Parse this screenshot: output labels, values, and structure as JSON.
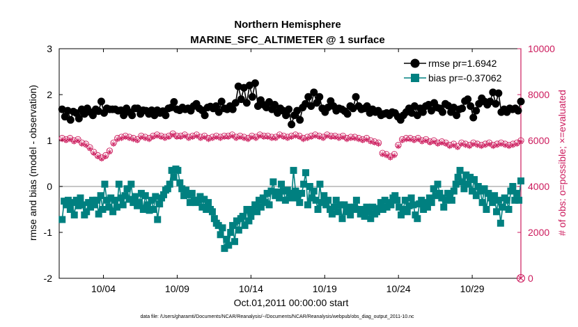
{
  "chart_data": {
    "type": "line",
    "title": "Northern Hemisphere",
    "subtitle": "MARINE_SFC_ALTIMETER @ 1 surface",
    "xlabel": "Oct.01,2011 00:00:00 start",
    "ylabel": "rmse and bias (model - observation)",
    "ylabel_right": "# of obs: o=possible; ×=evaluated",
    "footnote": "data file: /Users/gharamti/Documents/NCAR/Reanalysis/~/Documents/NCAR/Reanalysis/webpub/obs_diag_output_2011-10.nc",
    "xlim": [
      1,
      32.3
    ],
    "ylim": [
      -2,
      3
    ],
    "ylim_right": [
      0,
      10000
    ],
    "x_ticks": [
      4,
      9,
      14,
      19,
      24,
      29
    ],
    "x_tick_labels": [
      "10/04",
      "10/09",
      "10/14",
      "10/19",
      "10/24",
      "10/29"
    ],
    "y_ticks": [
      -2,
      -1,
      0,
      1,
      2,
      3
    ],
    "y_tick_labels": [
      "-2",
      "-1",
      "0",
      "1",
      "2",
      "3"
    ],
    "y_ticks_right": [
      0,
      2000,
      4000,
      6000,
      8000,
      10000
    ],
    "y_tick_labels_right": [
      "0",
      "2000",
      "4000",
      "6000",
      "8000",
      "10000"
    ],
    "legend_placement": "top-right",
    "zero_line": 0,
    "colors": {
      "rmse": "#000000",
      "bias": "#008080",
      "obs": "#cc1a5c",
      "zero": "#b3b3b3"
    },
    "series": [
      {
        "name": "rmse pr=1.6942",
        "marker": "circle",
        "axis": "left",
        "values": [
          1.68,
          1.52,
          1.65,
          1.45,
          1.63,
          1.6,
          1.48,
          1.68,
          1.58,
          1.7,
          1.62,
          1.55,
          1.68,
          1.64,
          1.85,
          1.6,
          1.7,
          1.68,
          1.68,
          1.68,
          1.65,
          1.66,
          1.55,
          1.7,
          1.62,
          1.55,
          1.7,
          1.7,
          1.58,
          1.66,
          1.65,
          1.58,
          1.66,
          1.55,
          1.66,
          1.6,
          1.64,
          1.55,
          1.7,
          1.72,
          1.84,
          1.68,
          1.66,
          1.72,
          1.68,
          1.7,
          1.65,
          1.75,
          1.8,
          1.7,
          1.66,
          1.55,
          1.72,
          1.74,
          1.7,
          1.75,
          1.62,
          1.85,
          1.7,
          1.68,
          1.75,
          1.68,
          1.82,
          2.18,
          1.9,
          2.15,
          1.82,
          2.2,
          1.95,
          2.25,
          1.75,
          1.88,
          1.78,
          1.72,
          1.84,
          1.68,
          1.78,
          1.6,
          1.7,
          1.65,
          1.55,
          1.68,
          1.35,
          1.55,
          1.65,
          1.45,
          1.72,
          1.8,
          1.95,
          1.75,
          2.05,
          1.82,
          1.95,
          1.7,
          1.62,
          1.72,
          1.86,
          1.75,
          1.65,
          1.7,
          1.68,
          1.64,
          1.58,
          1.75,
          1.7,
          1.95,
          1.75,
          1.68,
          1.7,
          1.75,
          1.6,
          1.68,
          1.62,
          1.65,
          1.55,
          1.58,
          1.6,
          1.55,
          1.62,
          1.6,
          1.52,
          1.45,
          1.55,
          1.62,
          1.7,
          1.6,
          1.75,
          1.55,
          1.7,
          1.62,
          1.75,
          1.78,
          1.65,
          1.82,
          1.72,
          1.7,
          1.62,
          1.8,
          1.76,
          1.62,
          1.72,
          1.55,
          1.68,
          1.7,
          1.86,
          1.9,
          1.75,
          1.5,
          1.65,
          1.8,
          1.92,
          1.85,
          1.78,
          1.85,
          2.05,
          1.8,
          2.03,
          1.62,
          1.68,
          1.62,
          1.7,
          1.68,
          1.7,
          1.65,
          1.85
        ]
      },
      {
        "name": "bias pr=-0.37062",
        "marker": "square",
        "axis": "left",
        "values": [
          -0.72,
          -0.32,
          -0.4,
          -0.3,
          -0.5,
          -0.35,
          -0.62,
          -0.3,
          -0.42,
          -0.25,
          -0.4,
          -0.62,
          -0.55,
          -0.35,
          -0.45,
          -0.3,
          -0.4,
          -0.3,
          -0.6,
          -0.2,
          -0.5,
          0.05,
          -0.3,
          -0.45,
          -0.25,
          -0.55,
          -0.3,
          -0.45,
          0.05,
          -0.25,
          -0.4,
          -0.2,
          -0.05,
          -0.28,
          0.05,
          -0.35,
          -0.22,
          -0.42,
          -0.35,
          -0.15,
          -0.5,
          -0.2,
          -0.4,
          -0.52,
          -0.3,
          -0.5,
          -0.22,
          -0.72,
          -0.38,
          -0.25,
          -0.18,
          -0.08,
          -0.05,
          0.05,
          0.35,
          0.2,
          0.38,
          0.35,
          0.08,
          -0.05,
          -0.2,
          -0.08,
          -0.18,
          -0.35,
          -0.15,
          -0.3,
          -0.35,
          -0.3,
          -0.22,
          -0.45,
          -0.28,
          -0.5,
          -0.35,
          -0.5,
          -0.55,
          -0.7,
          -0.8,
          -0.85,
          -1.05,
          -0.9,
          -1.35,
          -1.15,
          -1.28,
          -1.0,
          -0.85,
          -1.2,
          -0.75,
          -0.95,
          -0.7,
          -0.65,
          -0.85,
          -0.5,
          -0.75,
          -0.65,
          -0.5,
          -0.4,
          -0.55,
          -0.3,
          -0.45,
          -0.25,
          -0.35,
          -0.15,
          -0.4,
          -0.1,
          0.1,
          -0.2,
          -0.12,
          -0.25,
          0.05,
          -0.1,
          -0.3,
          -0.08,
          -0.15,
          -0.25,
          0.35,
          -0.1,
          -0.25,
          -0.35,
          -0.15,
          0.05,
          0.3,
          -0.4,
          0.0,
          -0.25,
          -0.1,
          -0.3,
          -0.5,
          0.05,
          -0.35,
          -0.2,
          -0.4,
          -0.3,
          -0.5,
          -0.6,
          -0.45,
          -0.3,
          -0.55,
          -0.4,
          -0.7,
          -0.4,
          -0.55,
          -0.45,
          -0.62,
          -0.5,
          -0.45,
          -0.3,
          -0.5,
          -0.6,
          -0.5,
          -0.65,
          -0.45,
          -0.55,
          -0.7,
          -0.45,
          -0.6,
          -0.55,
          -0.48,
          -0.35,
          -0.5,
          -0.3,
          -0.45,
          -0.35,
          -0.4,
          -0.25,
          -0.2,
          -0.3,
          -0.45,
          -0.62,
          -0.5,
          -0.3,
          -0.55,
          -0.42,
          -0.25,
          -0.4,
          -0.62,
          -0.7,
          -0.38,
          -0.3,
          -0.5,
          -0.35,
          -0.45,
          -0.25,
          -0.35,
          -0.05,
          -0.2,
          0.05,
          -0.15,
          -0.25,
          -0.45,
          -0.3,
          -0.15,
          -0.25,
          -0.3,
          -0.1,
          0.05,
          0.2,
          0.35,
          0.1,
          -0.05,
          0.25,
          0.05,
          0.2,
          -0.1,
          0.15,
          -0.2,
          0.0,
          -0.1,
          -0.35,
          -0.05,
          -0.5,
          -0.15,
          -0.25,
          -0.35,
          -0.2,
          -0.55,
          -0.3,
          -0.8,
          -0.45,
          -0.25,
          -0.3,
          -0.5,
          -0.1,
          0.0,
          -0.3,
          -0.15,
          -0.3,
          0.12
        ]
      },
      {
        "name": "possible",
        "marker": "circle-open",
        "axis": "right",
        "hidden_in_legend": true,
        "values": [
          6100,
          6050,
          6100,
          6000,
          6050,
          5900,
          5850,
          5700,
          5500,
          5350,
          5250,
          5350,
          5550,
          5900,
          6100,
          6150,
          6200,
          6150,
          6100,
          6050,
          6200,
          6150,
          6100,
          6200,
          6250,
          6200,
          6150,
          6200,
          6300,
          6200,
          6200,
          6250,
          6150,
          6200,
          6250,
          6150,
          6200,
          6100,
          6150,
          6200,
          6150,
          6200,
          6200,
          6250,
          6150,
          6200,
          6150,
          6100,
          6200,
          6150,
          6250,
          6200,
          6200,
          6150,
          6150,
          6250,
          6200,
          6150,
          6200,
          6250,
          6200,
          6100,
          6150,
          6200,
          6250,
          6200,
          6150,
          6250,
          6200,
          6200,
          6150,
          6200,
          6100,
          6150,
          6150,
          6100,
          6050,
          6100,
          6000,
          5950,
          5900,
          5450,
          5400,
          5300,
          5400,
          5800,
          6050,
          6100,
          6100,
          6050,
          6100,
          6000,
          6050,
          5950,
          6000,
          5900,
          5950,
          5900,
          5800,
          5850,
          5750,
          5900,
          5850,
          5800,
          5900,
          5850,
          5800,
          5850,
          5900,
          5800,
          5850,
          5900,
          5850,
          5800,
          5850,
          5900,
          6000
        ]
      },
      {
        "name": "evaluated",
        "marker": "asterisk",
        "axis": "right",
        "hidden_in_legend": true,
        "values": [
          6050,
          6000,
          6050,
          5950,
          6000,
          5850,
          5800,
          5650,
          5450,
          5300,
          5200,
          5300,
          5500,
          5850,
          6050,
          6100,
          6150,
          6100,
          6050,
          6000,
          6150,
          6100,
          6050,
          6150,
          6200,
          6150,
          6100,
          6150,
          6250,
          6150,
          6150,
          6200,
          6100,
          6150,
          6200,
          6100,
          6150,
          6050,
          6100,
          6150,
          6100,
          6150,
          6150,
          6200,
          6100,
          6150,
          6100,
          6050,
          6150,
          6100,
          6200,
          6150,
          6150,
          6100,
          6100,
          6200,
          6150,
          6100,
          6150,
          6200,
          6150,
          6050,
          6100,
          6150,
          6200,
          6150,
          6100,
          6200,
          6150,
          6150,
          6100,
          6150,
          6050,
          6100,
          6100,
          6050,
          6000,
          6050,
          5950,
          5900,
          5850,
          5400,
          5350,
          5250,
          5350,
          5750,
          6000,
          6050,
          6050,
          6000,
          6050,
          5950,
          6000,
          5900,
          5950,
          5850,
          5900,
          5850,
          5750,
          5800,
          5700,
          5850,
          5800,
          5750,
          5850,
          5800,
          5750,
          5800,
          5850,
          5750,
          5800,
          5850,
          5800,
          5750,
          5800,
          5850,
          5950
        ]
      }
    ]
  }
}
